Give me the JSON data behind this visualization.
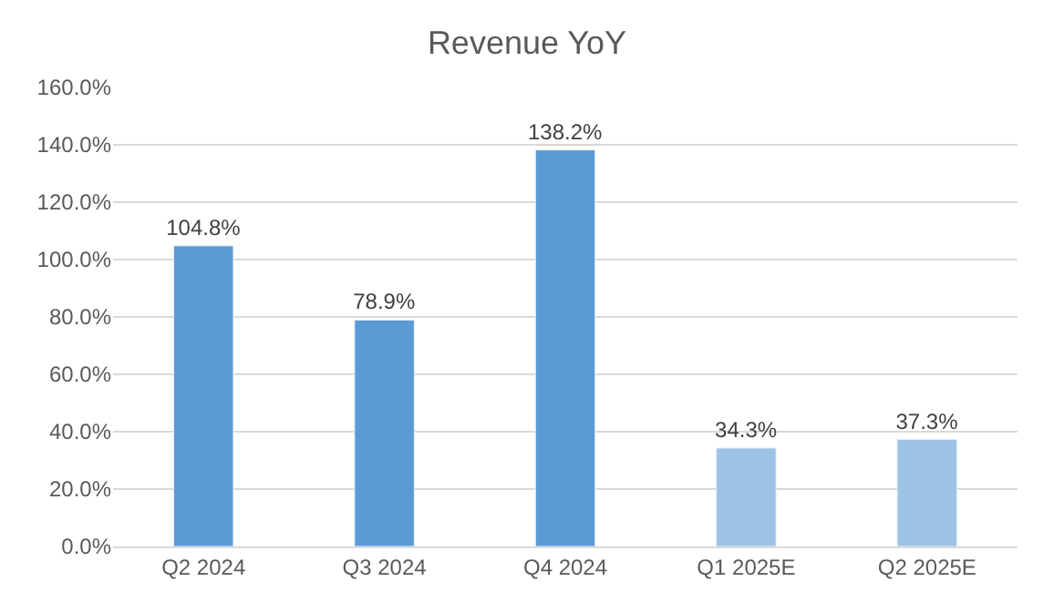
{
  "chart_data": {
    "type": "bar",
    "title": "Revenue YoY",
    "categories": [
      "Q2 2024",
      "Q3 2024",
      "Q4 2024",
      "Q1 2025E",
      "Q2 2025E"
    ],
    "values": [
      104.8,
      78.9,
      138.2,
      34.3,
      37.3
    ],
    "colors": [
      "#5b9bd5",
      "#5b9bd5",
      "#5b9bd5",
      "#9dc3e6",
      "#9dc3e6"
    ],
    "value_labels": [
      "104.8%",
      "78.9%",
      "138.2%",
      "34.3%",
      "37.3%"
    ],
    "ylim": [
      0,
      160
    ],
    "yticks": [
      {
        "value": 0,
        "label": "0.0%"
      },
      {
        "value": 20,
        "label": "20.0%"
      },
      {
        "value": 40,
        "label": "40.0%"
      },
      {
        "value": 60,
        "label": "60.0%"
      },
      {
        "value": 80,
        "label": "80.0%"
      },
      {
        "value": 100,
        "label": "100.0%"
      },
      {
        "value": 120,
        "label": "120.0%"
      },
      {
        "value": 140,
        "label": "140.0%"
      },
      {
        "value": 160,
        "label": "160.0%"
      }
    ],
    "grid": "y"
  }
}
